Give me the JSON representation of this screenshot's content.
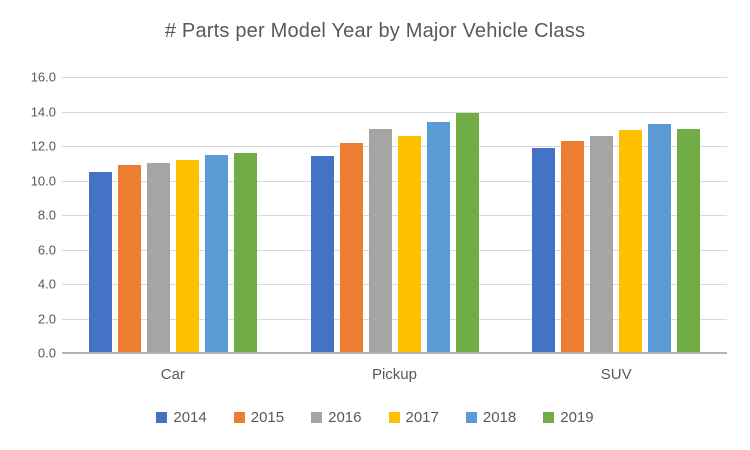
{
  "chart_data": {
    "type": "bar",
    "title": "# Parts per Model Year by Major Vehicle Class",
    "categories": [
      "Car",
      "Pickup",
      "SUV"
    ],
    "series": [
      {
        "name": "2014",
        "color": "#4472C4",
        "values": [
          10.5,
          11.4,
          11.9
        ]
      },
      {
        "name": "2015",
        "color": "#ED7D31",
        "values": [
          10.9,
          12.2,
          12.3
        ]
      },
      {
        "name": "2016",
        "color": "#A5A5A5",
        "values": [
          11.0,
          13.0,
          12.6
        ]
      },
      {
        "name": "2017",
        "color": "#FFC000",
        "values": [
          11.2,
          12.6,
          12.9
        ]
      },
      {
        "name": "2018",
        "color": "#5B9BD5",
        "values": [
          11.5,
          13.4,
          13.3
        ]
      },
      {
        "name": "2019",
        "color": "#70AD47",
        "values": [
          11.6,
          13.9,
          13.0
        ]
      }
    ],
    "xlabel": "",
    "ylabel": "",
    "ylim": [
      0,
      16
    ],
    "ytick_step": 2,
    "ytick_labels": [
      "0.0",
      "2.0",
      "4.0",
      "6.0",
      "8.0",
      "10.0",
      "12.0",
      "14.0",
      "16.0"
    ],
    "grid": true,
    "legend_position": "bottom"
  },
  "colors": {
    "background": "#FFFFFF",
    "text": "#595959",
    "gridline": "#D9D9D9",
    "axis_line": "#B5B5B5"
  }
}
